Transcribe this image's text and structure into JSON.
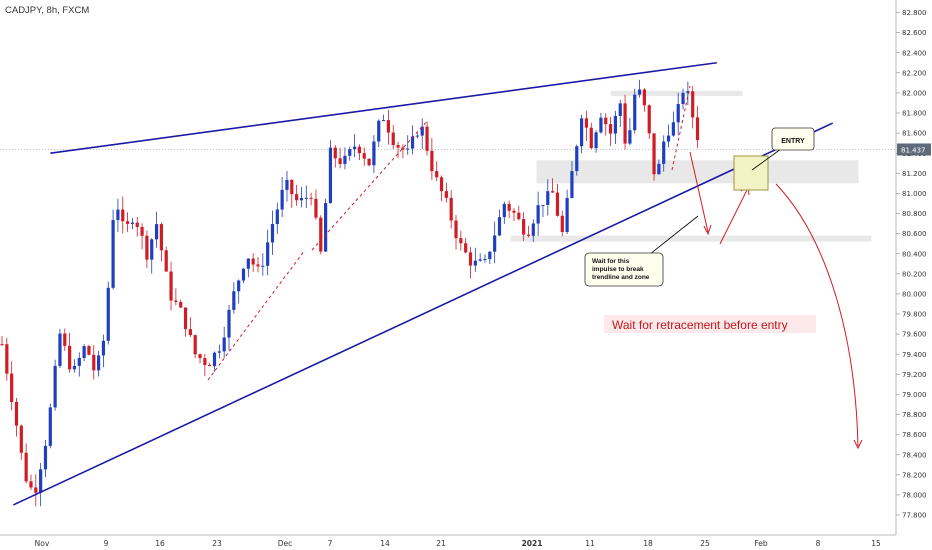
{
  "header": {
    "symbol_title": "CADJPY, 8h, FXCM"
  },
  "colors": {
    "up": "#1f3fbf",
    "down": "#d01c25",
    "trendline": "#1a1aa6",
    "annotation_red": "#d01c25",
    "zone_fill": "#e6e6e6",
    "entry_fill": "#f2f2c4",
    "entry_border": "#9a9a40",
    "price_tag_bg": "#5e6a7a",
    "note_bg": "#fffff0"
  },
  "annotations": {
    "main_note": "Wait for retracement before entry",
    "entry_label": "ENTRY",
    "impulse_note_line1": "Wait for this",
    "impulse_note_line2": "impulse to break",
    "impulse_note_line3": "trendline and zone"
  },
  "chart_data": {
    "type": "candlestick",
    "title": "CADJPY, 8h, FXCM",
    "ylim": [
      77.7,
      82.9
    ],
    "y_ticks": [
      "82.800",
      "82.600",
      "82.400",
      "82.200",
      "82.000",
      "81.800",
      "81.600",
      "81.400",
      "81.200",
      "81.000",
      "80.800",
      "80.600",
      "80.400",
      "80.200",
      "80.000",
      "79.800",
      "79.600",
      "79.400",
      "79.200",
      "79.000",
      "78.800",
      "78.600",
      "78.400",
      "78.200",
      "78.000",
      "77.800"
    ],
    "x_ticks": [
      "Nov",
      "9",
      "16",
      "23",
      "Dec",
      "7",
      "14",
      "21",
      "2021",
      "11",
      "18",
      "25",
      "Feb",
      "8",
      "15"
    ],
    "x_tick_bold": "2021",
    "current_price": "81.437",
    "current_price_value": 81.437,
    "anchors": [
      {
        "t": 0,
        "p": 79.5
      },
      {
        "t": 8,
        "p": 78.8
      },
      {
        "t": 14,
        "p": 78.2
      },
      {
        "t": 20,
        "p": 78.0
      },
      {
        "t": 28,
        "p": 78.6
      },
      {
        "t": 36,
        "p": 79.6
      },
      {
        "t": 44,
        "p": 79.2
      },
      {
        "t": 52,
        "p": 79.5
      },
      {
        "t": 58,
        "p": 79.2
      },
      {
        "t": 64,
        "p": 79.6
      },
      {
        "t": 70,
        "p": 81.0
      },
      {
        "t": 76,
        "p": 80.6
      },
      {
        "t": 82,
        "p": 80.8
      },
      {
        "t": 90,
        "p": 80.4
      },
      {
        "t": 96,
        "p": 80.7
      },
      {
        "t": 104,
        "p": 80.0
      },
      {
        "t": 112,
        "p": 79.8
      },
      {
        "t": 120,
        "p": 79.4
      },
      {
        "t": 128,
        "p": 79.3
      },
      {
        "t": 136,
        "p": 79.5
      },
      {
        "t": 144,
        "p": 80.0
      },
      {
        "t": 152,
        "p": 80.4
      },
      {
        "t": 160,
        "p": 80.2
      },
      {
        "t": 168,
        "p": 80.7
      },
      {
        "t": 176,
        "p": 81.1
      },
      {
        "t": 184,
        "p": 80.9
      },
      {
        "t": 192,
        "p": 81.0
      },
      {
        "t": 198,
        "p": 80.4
      },
      {
        "t": 204,
        "p": 81.4
      },
      {
        "t": 212,
        "p": 81.3
      },
      {
        "t": 220,
        "p": 81.5
      },
      {
        "t": 228,
        "p": 81.3
      },
      {
        "t": 236,
        "p": 81.8
      },
      {
        "t": 244,
        "p": 81.5
      },
      {
        "t": 252,
        "p": 81.4
      },
      {
        "t": 260,
        "p": 81.7
      },
      {
        "t": 268,
        "p": 81.2
      },
      {
        "t": 276,
        "p": 80.9
      },
      {
        "t": 284,
        "p": 80.5
      },
      {
        "t": 292,
        "p": 80.3
      },
      {
        "t": 300,
        "p": 80.3
      },
      {
        "t": 306,
        "p": 80.6
      },
      {
        "t": 312,
        "p": 80.9
      },
      {
        "t": 318,
        "p": 80.8
      },
      {
        "t": 326,
        "p": 80.6
      },
      {
        "t": 334,
        "p": 80.9
      },
      {
        "t": 342,
        "p": 81.0
      },
      {
        "t": 348,
        "p": 80.6
      },
      {
        "t": 354,
        "p": 81.2
      },
      {
        "t": 360,
        "p": 81.8
      },
      {
        "t": 366,
        "p": 81.5
      },
      {
        "t": 372,
        "p": 81.8
      },
      {
        "t": 378,
        "p": 81.6
      },
      {
        "t": 384,
        "p": 81.9
      },
      {
        "t": 388,
        "p": 81.4
      },
      {
        "t": 394,
        "p": 82.1
      },
      {
        "t": 400,
        "p": 81.8
      },
      {
        "t": 406,
        "p": 81.1
      },
      {
        "t": 412,
        "p": 81.6
      },
      {
        "t": 418,
        "p": 81.7
      },
      {
        "t": 424,
        "p": 82.1
      },
      {
        "t": 430,
        "p": 81.7
      },
      {
        "t": 434,
        "p": 81.44
      }
    ],
    "trendlines": [
      {
        "name": "upper-trendline",
        "p1": {
          "t": 30,
          "p": 81.4
        },
        "p2": {
          "t": 444,
          "p": 82.3
        }
      },
      {
        "name": "lower-trendline",
        "p1": {
          "t": 7,
          "p": 77.9
        },
        "p2": {
          "t": 516,
          "p": 81.7
        }
      }
    ],
    "zones": [
      {
        "name": "resistance-zone-top",
        "t1": 378,
        "t2": 460,
        "p1": 81.98,
        "p2": 82.02
      },
      {
        "name": "support-zone-mid",
        "t1": 332,
        "t2": 532,
        "p1": 81.1,
        "p2": 81.33
      },
      {
        "name": "support-zone-low",
        "t1": 316,
        "t2": 540,
        "p1": 80.52,
        "p2": 80.58
      }
    ]
  }
}
